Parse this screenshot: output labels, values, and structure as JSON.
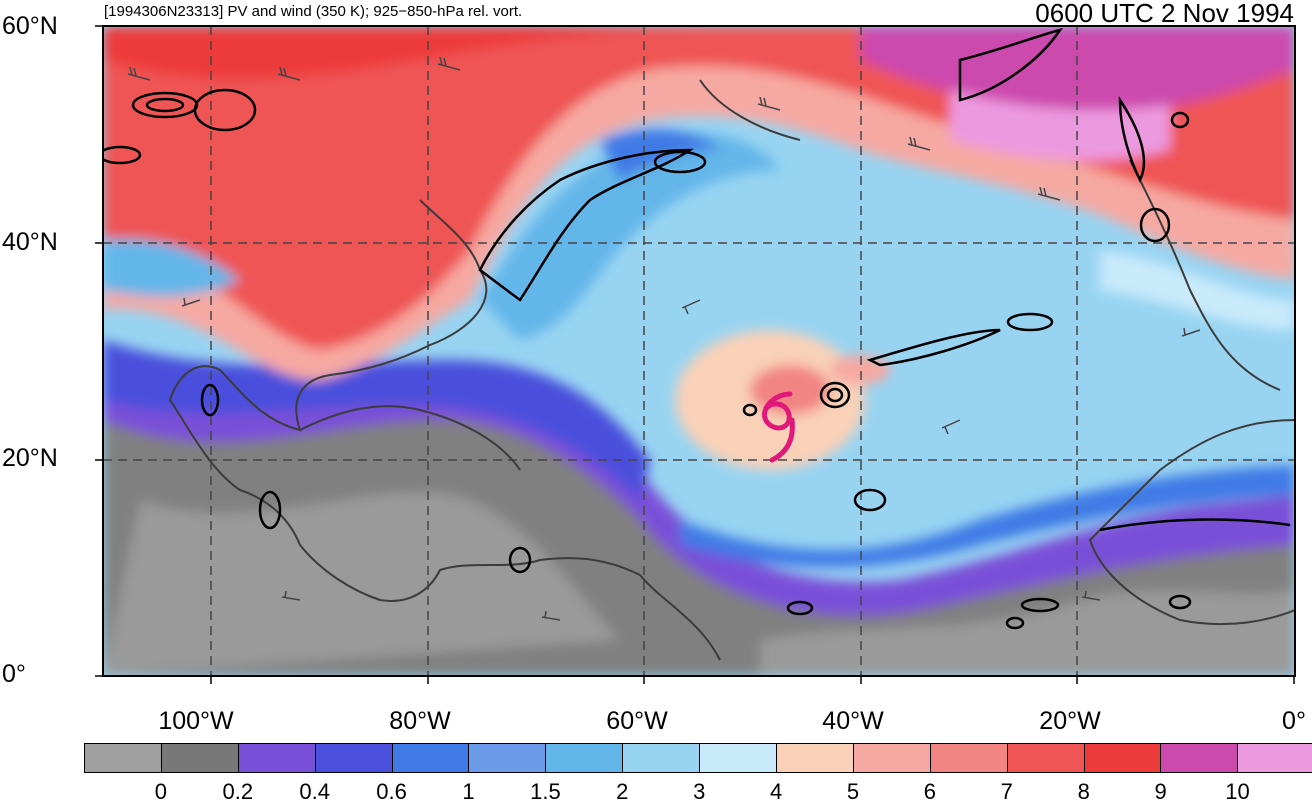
{
  "header": {
    "left_title": "[1994306N23313] PV and wind (350 K); 925−850-hPa rel. vort.",
    "right_title": "0600 UTC 2 Nov 1994"
  },
  "axes": {
    "lat_labels": [
      "60°N",
      "40°N",
      "20°N",
      "0°"
    ],
    "lon_labels": [
      "100°W",
      "80°W",
      "60°W",
      "40°W",
      "20°W",
      "0°"
    ]
  },
  "map": {
    "projection": "cylindrical equidistant",
    "lon_range": [
      -110,
      0
    ],
    "lat_range": [
      0,
      60
    ],
    "gridlines": "dashed",
    "storm_symbol": {
      "type": "tropical cyclone",
      "lat": 23.3,
      "lon": -46.8,
      "color": "#e0187a"
    }
  },
  "colorbar": {
    "tick_labels": [
      "0",
      "0.2",
      "0.4",
      "0.6",
      "1",
      "1.5",
      "2",
      "3",
      "4",
      "5",
      "6",
      "7",
      "8",
      "9",
      "10"
    ],
    "colors": [
      "#a0a0a0",
      "#787878",
      "#7a4fd8",
      "#4a4fdc",
      "#3f7ae6",
      "#6a9ae8",
      "#63b6ea",
      "#98d4f2",
      "#c9eafb",
      "#f9d1b8",
      "#f6a9a2",
      "#f28484",
      "#ef5555",
      "#ed3b3b",
      "#cc4aad",
      "#ec9ae0"
    ]
  }
}
